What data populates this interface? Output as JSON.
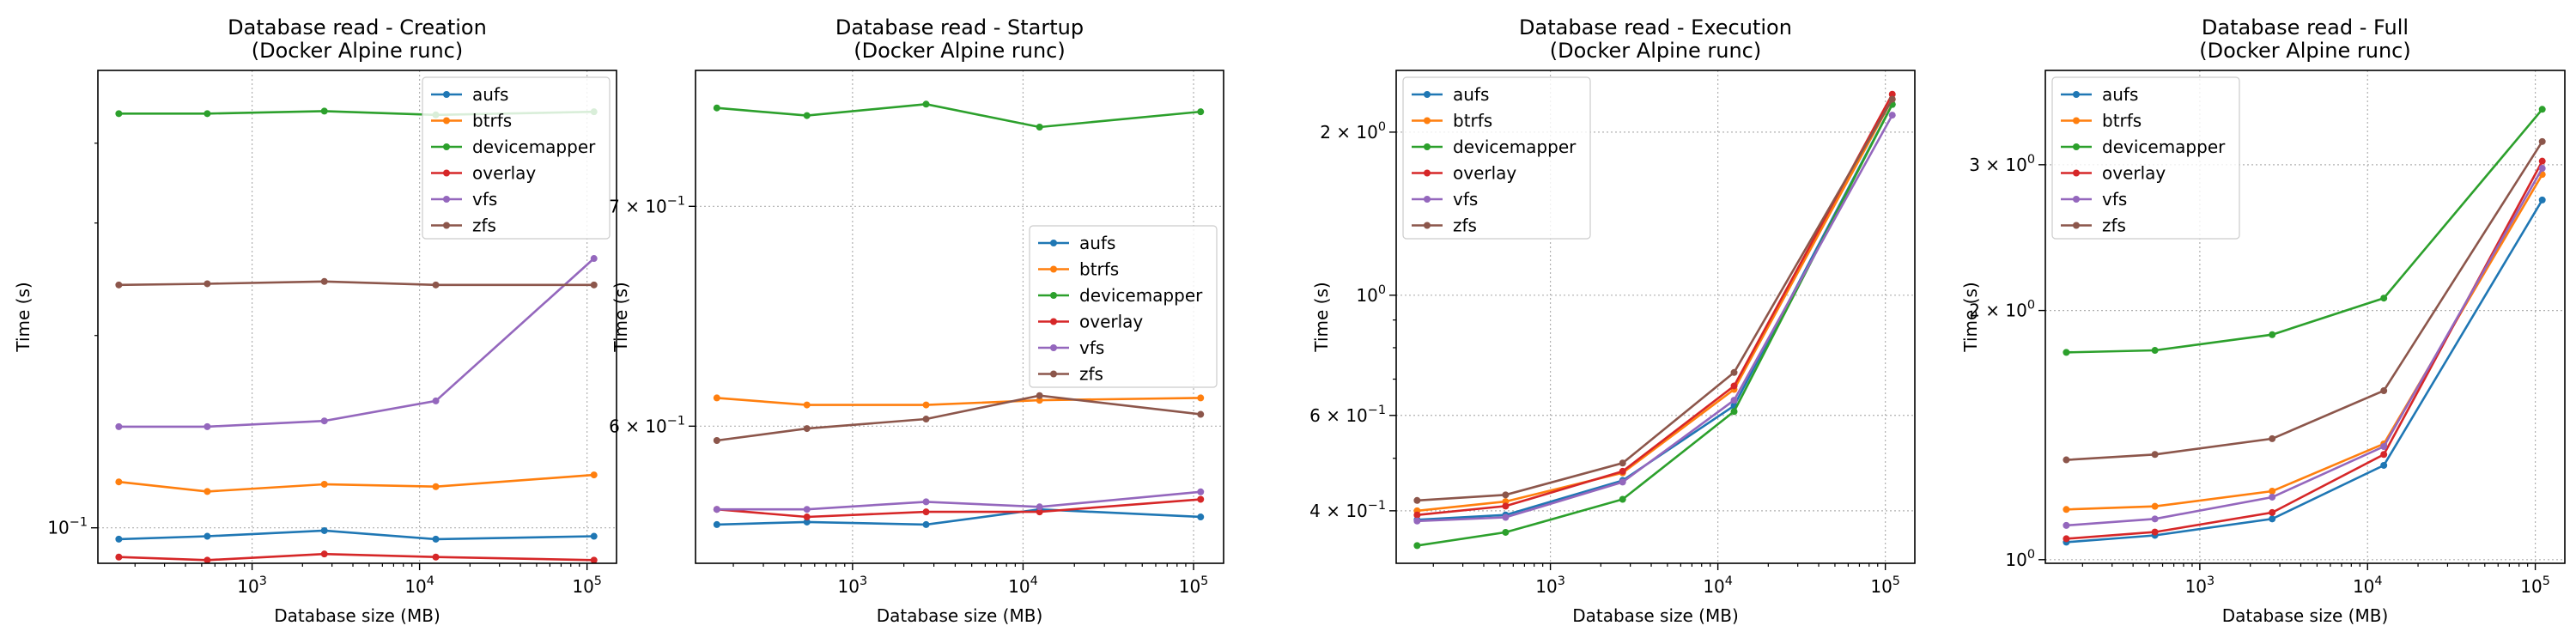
{
  "figure": {
    "colors": {
      "aufs": "#1f77b4",
      "btrfs": "#ff7f0e",
      "devicemapper": "#2ca02c",
      "overlay": "#d62728",
      "vfs": "#9467bd",
      "zfs": "#8c564b"
    }
  },
  "chart_data": [
    {
      "type": "line",
      "title": "Database read - Creation",
      "subtitle": "(Docker Alpine runc)",
      "xlabel": "Database size (MB)",
      "ylabel": "Time (s)",
      "xscale": "log",
      "yscale": "log",
      "x": [
        160,
        540,
        2700,
        12500,
        110000
      ],
      "xlim": [
        120,
        150000
      ],
      "ylim": [
        0.088,
        0.52
      ],
      "xticks": [
        {
          "value": 1000,
          "label": "10^3"
        },
        {
          "value": 10000,
          "label": "10^4"
        },
        {
          "value": 100000,
          "label": "10^5"
        }
      ],
      "yticks": [
        {
          "value": 0.1,
          "label": "10^-1"
        }
      ],
      "minor_yticks": [
        0.2,
        0.3,
        0.4
      ],
      "grid": true,
      "legend": "upper right",
      "series": [
        {
          "name": "aufs",
          "values": [
            0.096,
            0.097,
            0.099,
            0.096,
            0.097
          ]
        },
        {
          "name": "btrfs",
          "values": [
            0.118,
            0.114,
            0.117,
            0.116,
            0.121
          ]
        },
        {
          "name": "devicemapper",
          "values": [
            0.445,
            0.445,
            0.449,
            0.443,
            0.448
          ]
        },
        {
          "name": "overlay",
          "values": [
            0.09,
            0.089,
            0.091,
            0.09,
            0.089
          ]
        },
        {
          "name": "vfs",
          "values": [
            0.144,
            0.144,
            0.147,
            0.158,
            0.264
          ]
        },
        {
          "name": "zfs",
          "values": [
            0.24,
            0.241,
            0.243,
            0.24,
            0.24
          ]
        }
      ]
    },
    {
      "type": "line",
      "title": "Database read - Startup",
      "subtitle": "(Docker Alpine runc)",
      "xlabel": "Database size (MB)",
      "ylabel": "Time (s)",
      "xscale": "log",
      "yscale": "log",
      "x": [
        160,
        540,
        2700,
        12500,
        110000
      ],
      "xlim": [
        120,
        150000
      ],
      "ylim": [
        0.545,
        0.77
      ],
      "xticks": [
        {
          "value": 1000,
          "label": "10^3"
        },
        {
          "value": 10000,
          "label": "10^4"
        },
        {
          "value": 100000,
          "label": "10^5"
        }
      ],
      "yticks": [
        {
          "value": 0.6,
          "label": "6 × 10^-1"
        },
        {
          "value": 0.7,
          "label": "7 × 10^-1"
        }
      ],
      "minor_yticks": [],
      "grid": true,
      "legend": "center right",
      "series": [
        {
          "name": "aufs",
          "values": [
            0.56,
            0.561,
            0.56,
            0.566,
            0.563
          ]
        },
        {
          "name": "btrfs",
          "values": [
            0.612,
            0.609,
            0.609,
            0.611,
            0.612
          ]
        },
        {
          "name": "devicemapper",
          "values": [
            0.75,
            0.746,
            0.752,
            0.74,
            0.748
          ]
        },
        {
          "name": "overlay",
          "values": [
            0.566,
            0.563,
            0.565,
            0.565,
            0.57
          ]
        },
        {
          "name": "vfs",
          "values": [
            0.566,
            0.566,
            0.569,
            0.567,
            0.573
          ]
        },
        {
          "name": "zfs",
          "values": [
            0.594,
            0.599,
            0.603,
            0.613,
            0.605
          ]
        }
      ]
    },
    {
      "type": "line",
      "title": "Database read - Execution",
      "subtitle": "(Docker Alpine runc)",
      "xlabel": "Database size (MB)",
      "ylabel": "Time (s)",
      "xscale": "log",
      "yscale": "log",
      "x": [
        160,
        540,
        2700,
        12500,
        110000
      ],
      "xlim": [
        120,
        150000
      ],
      "ylim": [
        0.32,
        2.6
      ],
      "xticks": [
        {
          "value": 1000,
          "label": "10^3"
        },
        {
          "value": 10000,
          "label": "10^4"
        },
        {
          "value": 100000,
          "label": "10^5"
        }
      ],
      "yticks": [
        {
          "value": 0.4,
          "label": "4 × 10^-1"
        },
        {
          "value": 0.6,
          "label": "6 × 10^-1"
        },
        {
          "value": 1,
          "label": "10^0"
        },
        {
          "value": 2,
          "label": "2 × 10^0"
        }
      ],
      "minor_yticks": [
        0.5,
        0.7,
        0.8,
        0.9
      ],
      "grid": true,
      "legend": "upper left",
      "series": [
        {
          "name": "aufs",
          "values": [
            0.385,
            0.393,
            0.455,
            0.625,
            2.25
          ]
        },
        {
          "name": "btrfs",
          "values": [
            0.4,
            0.416,
            0.47,
            0.67,
            2.3
          ]
        },
        {
          "name": "devicemapper",
          "values": [
            0.345,
            0.365,
            0.42,
            0.61,
            2.25
          ]
        },
        {
          "name": "overlay",
          "values": [
            0.393,
            0.408,
            0.473,
            0.68,
            2.35
          ]
        },
        {
          "name": "vfs",
          "values": [
            0.383,
            0.389,
            0.452,
            0.64,
            2.15
          ]
        },
        {
          "name": "zfs",
          "values": [
            0.418,
            0.428,
            0.49,
            0.72,
            2.3
          ]
        }
      ]
    },
    {
      "type": "line",
      "title": "Database read - Full",
      "subtitle": "(Docker Alpine runc)",
      "xlabel": "Database size (MB)",
      "ylabel": "Time (s)",
      "xscale": "log",
      "yscale": "log",
      "x": [
        160,
        540,
        2700,
        12500,
        110000
      ],
      "xlim": [
        120,
        150000
      ],
      "ylim": [
        0.99,
        3.9
      ],
      "xticks": [
        {
          "value": 1000,
          "label": "10^3"
        },
        {
          "value": 10000,
          "label": "10^4"
        },
        {
          "value": 100000,
          "label": "10^5"
        }
      ],
      "yticks": [
        {
          "value": 1,
          "label": "10^0"
        },
        {
          "value": 2,
          "label": "2 × 10^0"
        },
        {
          "value": 3,
          "label": "3 × 10^0"
        }
      ],
      "minor_yticks": [],
      "grid": true,
      "legend": "upper left",
      "series": [
        {
          "name": "aufs",
          "values": [
            1.05,
            1.07,
            1.12,
            1.3,
            2.72
          ]
        },
        {
          "name": "btrfs",
          "values": [
            1.15,
            1.16,
            1.21,
            1.38,
            2.92
          ]
        },
        {
          "name": "devicemapper",
          "values": [
            1.78,
            1.79,
            1.87,
            2.07,
            3.5
          ]
        },
        {
          "name": "overlay",
          "values": [
            1.06,
            1.08,
            1.14,
            1.34,
            3.03
          ]
        },
        {
          "name": "vfs",
          "values": [
            1.1,
            1.12,
            1.19,
            1.37,
            2.97
          ]
        },
        {
          "name": "zfs",
          "values": [
            1.32,
            1.34,
            1.4,
            1.6,
            3.2
          ]
        }
      ]
    }
  ]
}
